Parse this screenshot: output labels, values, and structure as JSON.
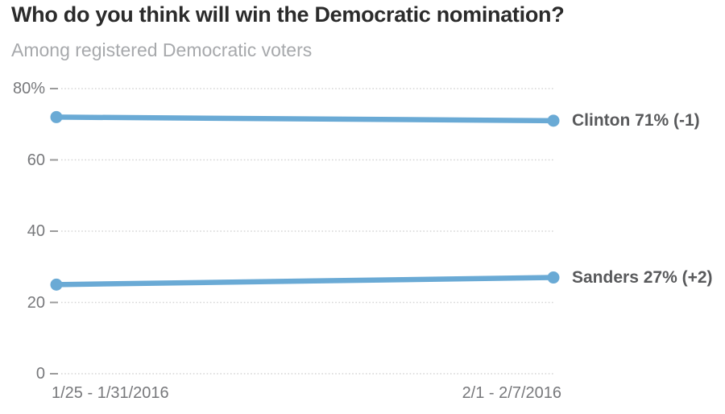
{
  "chart": {
    "title": "Who do you think will win the Democratic nomination?",
    "subtitle": "Among registered Democratic voters"
  },
  "colors": {
    "line_blue": "#6aaad5",
    "title_text": "#2b2b2b",
    "subtitle_text": "#a7a9ac",
    "axis_text": "#77787b",
    "series_label_text": "#58595b",
    "gridline": "#d6d6d6",
    "tick": "#9b9b9b",
    "background": "#ffffff"
  },
  "chart_data": {
    "type": "line",
    "title": "Who do you think will win the Democratic nomination?",
    "subtitle": "Among registered Democratic voters",
    "categories": [
      "1/25 - 1/31/2016",
      "2/1 - 2/7/2016"
    ],
    "series": [
      {
        "name": "Clinton",
        "values": [
          72,
          71
        ],
        "end_label": "Clinton 71% (-1)"
      },
      {
        "name": "Sanders",
        "values": [
          25,
          27
        ],
        "end_label": "Sanders 27% (+2)"
      }
    ],
    "xlabel": "",
    "ylabel": "",
    "ylim": [
      0,
      80
    ],
    "y_ticks": [
      {
        "value": 0,
        "label": "0"
      },
      {
        "value": 20,
        "label": "20"
      },
      {
        "value": 40,
        "label": "40"
      },
      {
        "value": 60,
        "label": "60"
      },
      {
        "value": 80,
        "label": "80%"
      }
    ],
    "grid": "horizontal-dotted",
    "legend_position": "line-end-labels",
    "marker": "circle-endpoints"
  }
}
